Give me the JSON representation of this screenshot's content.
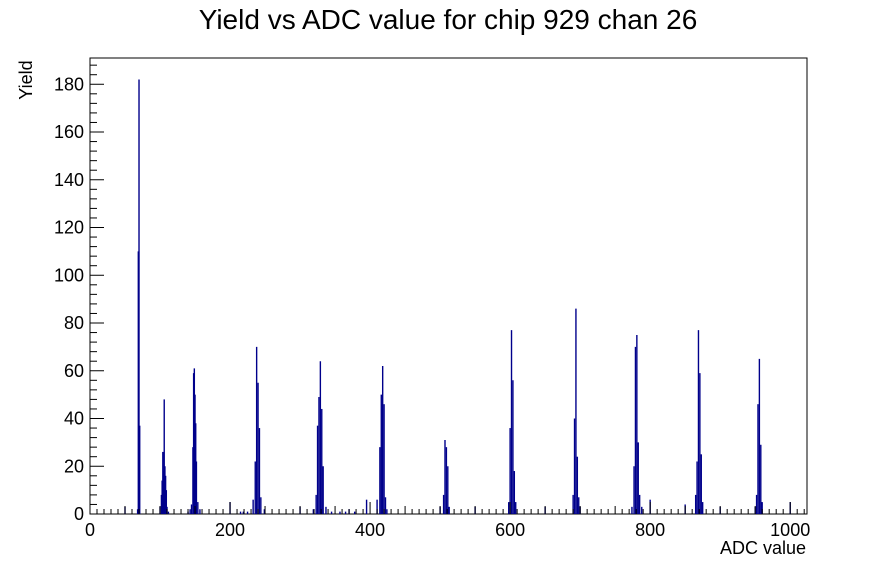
{
  "chart_data": {
    "type": "bar",
    "title": "Yield vs ADC value for chip 929 chan 26",
    "xlabel": "ADC value",
    "ylabel": "Yield",
    "xlim": [
      0,
      1024
    ],
    "ylim": [
      0,
      191
    ],
    "x_ticks": [
      0,
      200,
      400,
      600,
      800,
      1000
    ],
    "y_ticks": [
      0,
      20,
      40,
      60,
      80,
      100,
      120,
      140,
      160,
      180
    ],
    "series_color": "#00008b",
    "bins": [
      {
        "x": 50,
        "y": 3
      },
      {
        "x": 68,
        "y": 2
      },
      {
        "x": 69,
        "y": 110
      },
      {
        "x": 70,
        "y": 182
      },
      {
        "x": 71,
        "y": 37
      },
      {
        "x": 100,
        "y": 3
      },
      {
        "x": 102,
        "y": 8
      },
      {
        "x": 103,
        "y": 14
      },
      {
        "x": 104,
        "y": 26
      },
      {
        "x": 105,
        "y": 18
      },
      {
        "x": 106,
        "y": 48
      },
      {
        "x": 107,
        "y": 20
      },
      {
        "x": 108,
        "y": 16
      },
      {
        "x": 109,
        "y": 10
      },
      {
        "x": 110,
        "y": 3
      },
      {
        "x": 112,
        "y": 1
      },
      {
        "x": 140,
        "y": 1
      },
      {
        "x": 143,
        "y": 2
      },
      {
        "x": 145,
        "y": 4
      },
      {
        "x": 147,
        "y": 28
      },
      {
        "x": 148,
        "y": 59
      },
      {
        "x": 149,
        "y": 61
      },
      {
        "x": 150,
        "y": 50
      },
      {
        "x": 151,
        "y": 38
      },
      {
        "x": 152,
        "y": 22
      },
      {
        "x": 154,
        "y": 5
      },
      {
        "x": 157,
        "y": 2
      },
      {
        "x": 200,
        "y": 5
      },
      {
        "x": 215,
        "y": 1
      },
      {
        "x": 219,
        "y": 1
      },
      {
        "x": 225,
        "y": 1
      },
      {
        "x": 233,
        "y": 6
      },
      {
        "x": 236,
        "y": 22
      },
      {
        "x": 238,
        "y": 70
      },
      {
        "x": 240,
        "y": 55
      },
      {
        "x": 242,
        "y": 36
      },
      {
        "x": 244,
        "y": 7
      },
      {
        "x": 249,
        "y": 2
      },
      {
        "x": 300,
        "y": 3
      },
      {
        "x": 319,
        "y": 2
      },
      {
        "x": 323,
        "y": 8
      },
      {
        "x": 325,
        "y": 37
      },
      {
        "x": 327,
        "y": 49
      },
      {
        "x": 329,
        "y": 64
      },
      {
        "x": 331,
        "y": 44
      },
      {
        "x": 333,
        "y": 20
      },
      {
        "x": 337,
        "y": 3
      },
      {
        "x": 345,
        "y": 1
      },
      {
        "x": 357,
        "y": 1
      },
      {
        "x": 365,
        "y": 1
      },
      {
        "x": 370,
        "y": 2
      },
      {
        "x": 378,
        "y": 1
      },
      {
        "x": 395,
        "y": 6
      },
      {
        "x": 410,
        "y": 6
      },
      {
        "x": 414,
        "y": 28
      },
      {
        "x": 416,
        "y": 50
      },
      {
        "x": 418,
        "y": 62
      },
      {
        "x": 420,
        "y": 46
      },
      {
        "x": 422,
        "y": 7
      },
      {
        "x": 424,
        "y": 2
      },
      {
        "x": 500,
        "y": 3
      },
      {
        "x": 505,
        "y": 8
      },
      {
        "x": 507,
        "y": 31
      },
      {
        "x": 509,
        "y": 28
      },
      {
        "x": 511,
        "y": 20
      },
      {
        "x": 513,
        "y": 3
      },
      {
        "x": 550,
        "y": 3
      },
      {
        "x": 598,
        "y": 5
      },
      {
        "x": 600,
        "y": 36
      },
      {
        "x": 602,
        "y": 77
      },
      {
        "x": 604,
        "y": 56
      },
      {
        "x": 606,
        "y": 18
      },
      {
        "x": 608,
        "y": 5
      },
      {
        "x": 650,
        "y": 3
      },
      {
        "x": 690,
        "y": 8
      },
      {
        "x": 692,
        "y": 40
      },
      {
        "x": 694,
        "y": 86
      },
      {
        "x": 696,
        "y": 24
      },
      {
        "x": 698,
        "y": 7
      },
      {
        "x": 700,
        "y": 3
      },
      {
        "x": 774,
        "y": 3
      },
      {
        "x": 777,
        "y": 20
      },
      {
        "x": 779,
        "y": 70
      },
      {
        "x": 781,
        "y": 75
      },
      {
        "x": 783,
        "y": 30
      },
      {
        "x": 785,
        "y": 8
      },
      {
        "x": 788,
        "y": 3
      },
      {
        "x": 800,
        "y": 6
      },
      {
        "x": 850,
        "y": 4
      },
      {
        "x": 865,
        "y": 8
      },
      {
        "x": 867,
        "y": 22
      },
      {
        "x": 869,
        "y": 77
      },
      {
        "x": 871,
        "y": 59
      },
      {
        "x": 873,
        "y": 25
      },
      {
        "x": 875,
        "y": 5
      },
      {
        "x": 900,
        "y": 3
      },
      {
        "x": 950,
        "y": 3
      },
      {
        "x": 952,
        "y": 8
      },
      {
        "x": 954,
        "y": 46
      },
      {
        "x": 956,
        "y": 65
      },
      {
        "x": 958,
        "y": 29
      },
      {
        "x": 960,
        "y": 5
      },
      {
        "x": 1000,
        "y": 5
      }
    ]
  }
}
